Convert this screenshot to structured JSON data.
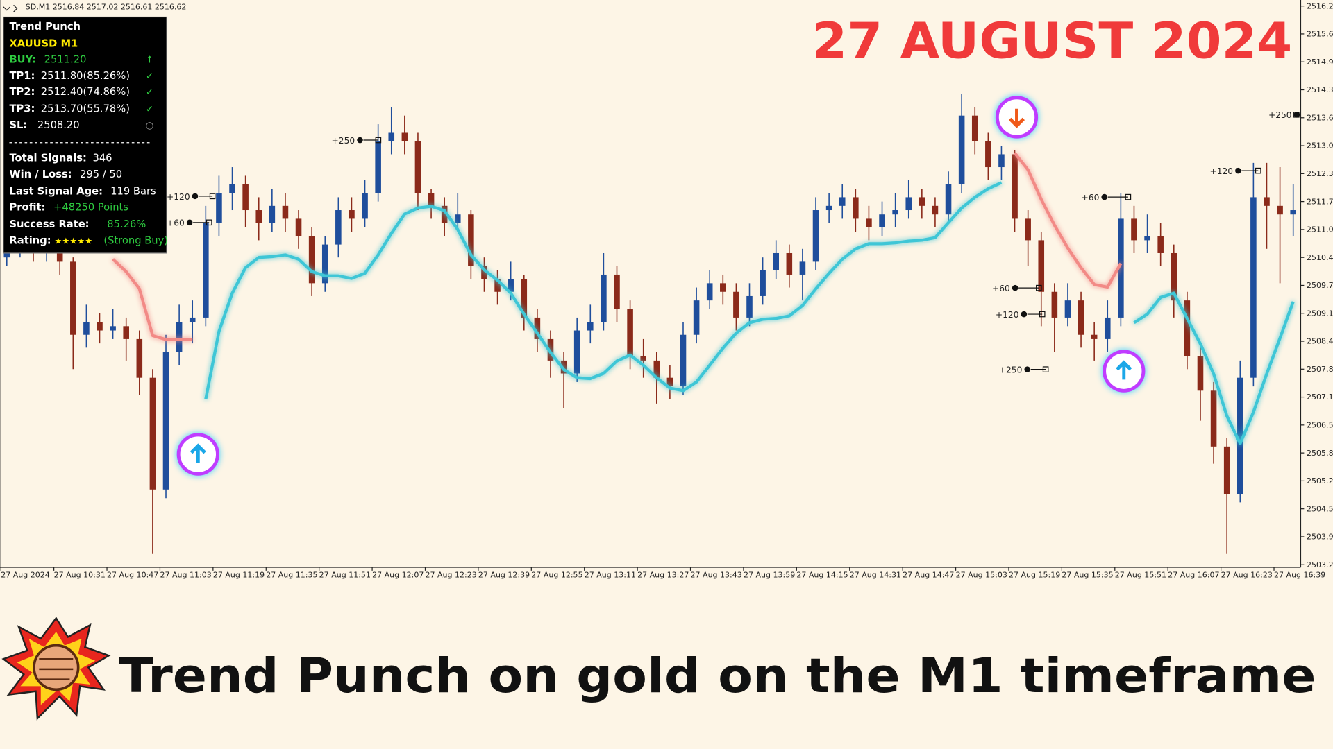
{
  "header": {
    "symbol_line": "SD,M1  2516.84 2517.02 2516.61 2516.62",
    "date_banner": "27 AUGUST 2024",
    "caption": "Trend Punch on gold on the M1 timeframe"
  },
  "panel": {
    "title": "Trend Punch",
    "symbol": "XAUUSD M1",
    "signal_rows": [
      {
        "label": "BUY:",
        "value": "2511.20"
      },
      {
        "label": "TP1:",
        "value": "2511.80(85.26%)"
      },
      {
        "label": "TP2:",
        "value": "2512.40(74.86%)"
      },
      {
        "label": "TP3:",
        "value": "2513.70(55.78%)"
      },
      {
        "label": "SL:",
        "value": "2508.20"
      }
    ],
    "stat_rows": [
      {
        "label": "Total Signals:",
        "value": "346"
      },
      {
        "label": "Win / Loss:",
        "value": "295 / 50"
      },
      {
        "label": "Last Signal Age:",
        "value": "119 Bars"
      },
      {
        "label": "Profit:",
        "value": "+48250 Points"
      },
      {
        "label": "Success Rate:",
        "value": "85.26%"
      },
      {
        "label": "Rating:",
        "value": "★★★★★",
        "note": "(Strong Buy)"
      }
    ]
  },
  "targets": [
    "+250",
    "+120",
    "+60",
    "+250",
    "+120",
    "+60",
    "+60",
    "+120",
    "+250"
  ],
  "chart_data": {
    "type": "candlestick",
    "up_color": "#1f4e9c",
    "down_color": "#8b2a1a",
    "x_labels": [
      "27 Aug 2024",
      "27 Aug 10:31",
      "27 Aug 10:47",
      "27 Aug 11:03",
      "27 Aug 11:19",
      "27 Aug 11:35",
      "27 Aug 11:51",
      "27 Aug 12:07",
      "27 Aug 12:23",
      "27 Aug 12:39",
      "27 Aug 12:55",
      "27 Aug 13:11",
      "27 Aug 13:27",
      "27 Aug 13:43",
      "27 Aug 13:59",
      "27 Aug 14:15",
      "27 Aug 14:31",
      "27 Aug 14:47",
      "27 Aug 15:03",
      "27 Aug 15:19",
      "27 Aug 15:35",
      "27 Aug 15:51",
      "27 Aug 16:07",
      "27 Aug 16:23",
      "27 Aug 16:39"
    ],
    "ylim": [
      2503.19,
      2516.39
    ],
    "yticks": [
      2516.25,
      {
        "value": 2515.6,
        "label": "2515.60"
      },
      2514.95,
      {
        "value": 2514.3,
        "label": "2514.30"
      },
      2513.65,
      {
        "value": 2513,
        "label": "2513.00"
      },
      2512.35,
      {
        "value": 2511.7,
        "label": "2511.70"
      },
      2511.05,
      {
        "value": 2510.4,
        "label": "2510.40"
      },
      2509.75,
      {
        "value": 2509.1,
        "label": "2509.10"
      },
      2508.45,
      {
        "value": 2507.8,
        "label": "2507.80"
      },
      2507.15,
      {
        "value": 2506.5,
        "label": "2506.50"
      },
      2505.85,
      {
        "value": 2505.2,
        "label": "2505.20"
      },
      2504.55,
      {
        "value": 2503.9,
        "label": "2503.90"
      },
      2503.25
    ],
    "ohlc": [
      [
        2510.4,
        2510.8,
        2510.2,
        2510.6
      ],
      [
        2510.6,
        2511.0,
        2510.4,
        2510.8
      ],
      [
        2510.8,
        2510.9,
        2510.3,
        2510.5
      ],
      [
        2510.5,
        2510.9,
        2510.3,
        2510.7
      ],
      [
        2510.7,
        2510.9,
        2510.0,
        2510.3
      ],
      [
        2510.3,
        2510.4,
        2507.8,
        2508.6
      ],
      [
        2508.6,
        2509.3,
        2508.3,
        2508.9
      ],
      [
        2508.9,
        2509.1,
        2508.4,
        2508.7
      ],
      [
        2508.7,
        2509.2,
        2508.5,
        2508.8
      ],
      [
        2508.8,
        2509.0,
        2508.0,
        2508.5
      ],
      [
        2508.5,
        2508.7,
        2507.2,
        2507.6
      ],
      [
        2507.6,
        2507.8,
        2503.5,
        2505.0
      ],
      [
        2505.0,
        2508.6,
        2504.8,
        2508.2
      ],
      [
        2508.2,
        2509.3,
        2507.9,
        2508.9
      ],
      [
        2508.9,
        2509.4,
        2508.4,
        2509.0
      ],
      [
        2509.0,
        2511.6,
        2508.8,
        2511.2
      ],
      [
        2511.2,
        2512.3,
        2510.9,
        2511.9
      ],
      [
        2511.9,
        2512.5,
        2511.5,
        2512.1
      ],
      [
        2512.1,
        2512.3,
        2511.1,
        2511.5
      ],
      [
        2511.5,
        2511.8,
        2510.8,
        2511.2
      ],
      [
        2511.2,
        2512.0,
        2511.0,
        2511.6
      ],
      [
        2511.6,
        2511.9,
        2511.0,
        2511.3
      ],
      [
        2511.3,
        2511.5,
        2510.6,
        2510.9
      ],
      [
        2510.9,
        2511.1,
        2509.5,
        2509.8
      ],
      [
        2509.8,
        2510.9,
        2509.6,
        2510.7
      ],
      [
        2510.7,
        2511.8,
        2510.4,
        2511.5
      ],
      [
        2511.5,
        2511.8,
        2511.0,
        2511.3
      ],
      [
        2511.3,
        2512.2,
        2511.1,
        2511.9
      ],
      [
        2511.9,
        2513.5,
        2511.7,
        2513.1
      ],
      [
        2513.1,
        2513.9,
        2512.8,
        2513.3
      ],
      [
        2513.3,
        2513.7,
        2512.8,
        2513.1
      ],
      [
        2513.1,
        2513.3,
        2511.5,
        2511.9
      ],
      [
        2511.9,
        2512.0,
        2511.3,
        2511.6
      ],
      [
        2511.6,
        2511.8,
        2510.9,
        2511.2
      ],
      [
        2511.2,
        2511.9,
        2511.0,
        2511.4
      ],
      [
        2511.4,
        2511.5,
        2509.9,
        2510.2
      ],
      [
        2510.2,
        2510.4,
        2509.6,
        2509.9
      ],
      [
        2509.9,
        2510.1,
        2509.3,
        2509.6
      ],
      [
        2509.6,
        2510.3,
        2509.4,
        2509.9
      ],
      [
        2509.9,
        2510.0,
        2508.7,
        2509.0
      ],
      [
        2509.0,
        2509.2,
        2508.2,
        2508.5
      ],
      [
        2508.5,
        2508.7,
        2507.6,
        2508.0
      ],
      [
        2508.0,
        2508.2,
        2506.9,
        2507.7
      ],
      [
        2507.7,
        2509.0,
        2507.5,
        2508.7
      ],
      [
        2508.7,
        2509.3,
        2508.4,
        2508.9
      ],
      [
        2508.9,
        2510.5,
        2508.7,
        2510.0
      ],
      [
        2510.0,
        2510.2,
        2508.9,
        2509.2
      ],
      [
        2509.2,
        2509.4,
        2507.8,
        2508.1
      ],
      [
        2508.1,
        2508.5,
        2507.6,
        2508.0
      ],
      [
        2508.0,
        2508.2,
        2507.0,
        2507.6
      ],
      [
        2507.6,
        2507.9,
        2507.1,
        2507.4
      ],
      [
        2507.4,
        2508.9,
        2507.2,
        2508.6
      ],
      [
        2508.6,
        2509.7,
        2508.4,
        2509.4
      ],
      [
        2509.4,
        2510.1,
        2509.2,
        2509.8
      ],
      [
        2509.8,
        2510.0,
        2509.3,
        2509.6
      ],
      [
        2509.6,
        2509.8,
        2508.7,
        2509.0
      ],
      [
        2509.0,
        2509.8,
        2508.8,
        2509.5
      ],
      [
        2509.5,
        2510.4,
        2509.3,
        2510.1
      ],
      [
        2510.1,
        2510.8,
        2509.9,
        2510.5
      ],
      [
        2510.5,
        2510.7,
        2509.7,
        2510.0
      ],
      [
        2510.0,
        2510.6,
        2509.4,
        2510.3
      ],
      [
        2510.3,
        2511.8,
        2510.1,
        2511.5
      ],
      [
        2511.5,
        2511.9,
        2511.2,
        2511.6
      ],
      [
        2511.6,
        2512.1,
        2511.3,
        2511.8
      ],
      [
        2511.8,
        2512.0,
        2511.0,
        2511.3
      ],
      [
        2511.3,
        2511.6,
        2510.8,
        2511.1
      ],
      [
        2511.1,
        2511.7,
        2510.9,
        2511.4
      ],
      [
        2511.4,
        2511.9,
        2511.1,
        2511.5
      ],
      [
        2511.5,
        2512.2,
        2511.3,
        2511.8
      ],
      [
        2511.8,
        2512.0,
        2511.3,
        2511.6
      ],
      [
        2511.6,
        2511.8,
        2511.1,
        2511.4
      ],
      [
        2511.4,
        2512.4,
        2511.2,
        2512.1
      ],
      [
        2512.1,
        2514.2,
        2511.9,
        2513.7
      ],
      [
        2513.7,
        2513.9,
        2512.8,
        2513.1
      ],
      [
        2513.1,
        2513.3,
        2512.2,
        2512.5
      ],
      [
        2512.5,
        2513.0,
        2512.2,
        2512.8
      ],
      [
        2512.8,
        2512.9,
        2511.0,
        2511.3
      ],
      [
        2511.3,
        2511.5,
        2510.2,
        2510.8
      ],
      [
        2510.8,
        2511.0,
        2508.8,
        2509.6
      ],
      [
        2509.6,
        2509.8,
        2508.2,
        2509.0
      ],
      [
        2509.0,
        2509.8,
        2508.8,
        2509.4
      ],
      [
        2509.4,
        2509.6,
        2508.3,
        2508.6
      ],
      [
        2508.6,
        2508.9,
        2508.0,
        2508.5
      ],
      [
        2508.5,
        2509.4,
        2508.2,
        2509.0
      ],
      [
        2509.0,
        2511.9,
        2508.8,
        2511.3
      ],
      [
        2511.3,
        2511.6,
        2510.5,
        2510.8
      ],
      [
        2510.8,
        2511.4,
        2510.5,
        2510.9
      ],
      [
        2510.9,
        2511.2,
        2510.2,
        2510.5
      ],
      [
        2510.5,
        2510.7,
        2509.0,
        2509.4
      ],
      [
        2509.4,
        2509.6,
        2507.8,
        2508.1
      ],
      [
        2508.1,
        2508.3,
        2506.6,
        2507.3
      ],
      [
        2507.3,
        2507.5,
        2505.6,
        2506.0
      ],
      [
        2506.0,
        2506.2,
        2503.5,
        2504.9
      ],
      [
        2504.9,
        2508.0,
        2504.7,
        2507.6
      ],
      [
        2507.6,
        2512.6,
        2507.4,
        2511.8
      ],
      [
        2511.8,
        2512.6,
        2510.6,
        2511.6
      ],
      [
        2511.6,
        2512.5,
        2509.8,
        2511.4
      ],
      [
        2511.4,
        2512.1,
        2510.9,
        2511.5
      ]
    ],
    "trend": [
      {
        "color": "#f28a86",
        "values": [
          null,
          null,
          null,
          null,
          null,
          null,
          null,
          null,
          2510.36,
          2510.07,
          2509.67,
          2508.58,
          2508.49,
          2508.49,
          2508.49,
          null,
          null,
          null,
          null,
          null,
          null,
          null,
          null,
          null,
          null,
          null,
          null,
          null,
          null,
          null,
          null,
          null,
          null,
          null,
          null,
          null,
          null,
          null,
          null,
          null,
          null,
          null,
          null,
          null,
          null,
          null,
          null,
          null,
          null,
          null,
          null,
          null,
          null,
          null,
          null,
          null,
          null,
          null,
          null,
          null,
          null,
          null,
          null,
          null,
          null,
          null,
          null,
          null,
          null,
          null,
          null,
          null,
          null,
          null,
          null,
          null,
          2512.83,
          2512.44,
          2511.75,
          2511.15,
          2510.62,
          2510.16,
          2509.77,
          2509.71,
          2510.26,
          null,
          null,
          null,
          null,
          null,
          null,
          null,
          null,
          null,
          null,
          null,
          null,
          null
        ]
      },
      {
        "color": "#3ec6d6",
        "values": [
          null,
          null,
          null,
          null,
          null,
          null,
          null,
          null,
          null,
          null,
          null,
          null,
          null,
          null,
          null,
          2507.1,
          2508.68,
          2509.57,
          2510.16,
          2510.4,
          2510.42,
          2510.46,
          2510.36,
          2510.07,
          2509.97,
          2509.97,
          2509.91,
          2510.03,
          2510.46,
          2510.96,
          2511.41,
          2511.55,
          2511.59,
          2511.49,
          2511.05,
          2510.46,
          2510.11,
          2509.87,
          2509.57,
          2509.08,
          2508.64,
          2508.19,
          2507.79,
          2507.6,
          2507.58,
          2507.7,
          2507.99,
          2508.13,
          2507.89,
          2507.6,
          2507.36,
          2507.3,
          2507.5,
          2507.89,
          2508.29,
          2508.64,
          2508.88,
          2508.96,
          2508.98,
          2509.04,
          2509.28,
          2509.67,
          2510.03,
          2510.36,
          2510.6,
          2510.72,
          2510.72,
          2510.74,
          2510.78,
          2510.8,
          2510.86,
          2511.21,
          2511.55,
          2511.8,
          2512.0,
          2512.14,
          null,
          null,
          null,
          null,
          null,
          null,
          null,
          null,
          null,
          2508.88,
          2509.08,
          2509.47,
          2509.57,
          2508.98,
          2508.39,
          2507.69,
          2506.71,
          2506.07,
          2506.8,
          2507.69,
          2508.52,
          2509.37
        ]
      }
    ]
  }
}
